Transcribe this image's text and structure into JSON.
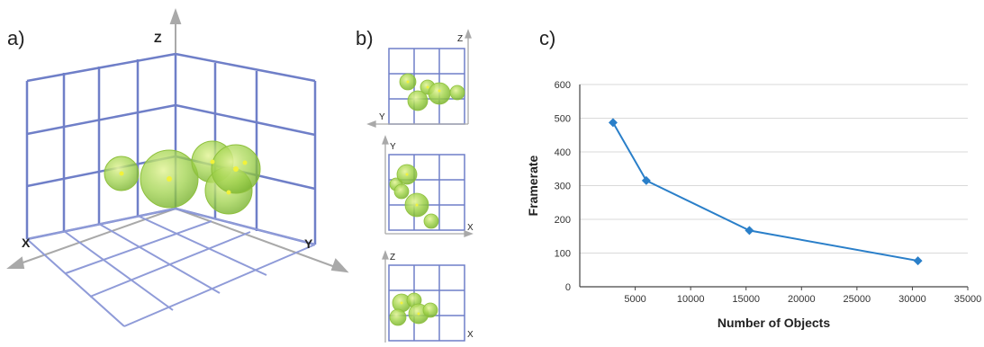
{
  "panel_labels": {
    "a": "a)",
    "b": "b)",
    "c": "c)"
  },
  "panel_a": {
    "axis_x": "X",
    "axis_y": "Y",
    "axis_z": "Z"
  },
  "panel_b": {
    "top_view": {
      "h_axis": "Y",
      "v_axis": "Z"
    },
    "middle_view": {
      "h_axis": "X",
      "v_axis": "Y"
    },
    "bottom_view": {
      "h_axis": "X",
      "v_axis": "Z"
    }
  },
  "colors": {
    "grid_blue": "#6f7fc8",
    "sphere_green": "#9fd24a",
    "sphere_core": "#f2f23a",
    "series_line": "#2a7fc9",
    "chart_grid": "#d9d9d9"
  },
  "chart_data": {
    "type": "line",
    "title": "",
    "xlabel": "Number of Objects",
    "ylabel": "Framerate",
    "xlim": [
      0,
      35000
    ],
    "ylim": [
      0,
      600
    ],
    "x_ticks": [
      5000,
      10000,
      15000,
      20000,
      25000,
      30000,
      35000
    ],
    "x_tick_labels": [
      "5000",
      "10000",
      "15000",
      "20000",
      "25000",
      "30000",
      "35000"
    ],
    "y_ticks": [
      0,
      100,
      200,
      300,
      400,
      500,
      600
    ],
    "y_tick_labels": [
      "0",
      "100",
      "200",
      "300",
      "400",
      "500",
      "600"
    ],
    "grid": "horizontal",
    "series": [
      {
        "points": [
          {
            "x": 3000,
            "y": 487
          },
          {
            "x": 6000,
            "y": 315
          },
          {
            "x": 15300,
            "y": 167
          },
          {
            "x": 30500,
            "y": 77
          }
        ]
      }
    ]
  }
}
